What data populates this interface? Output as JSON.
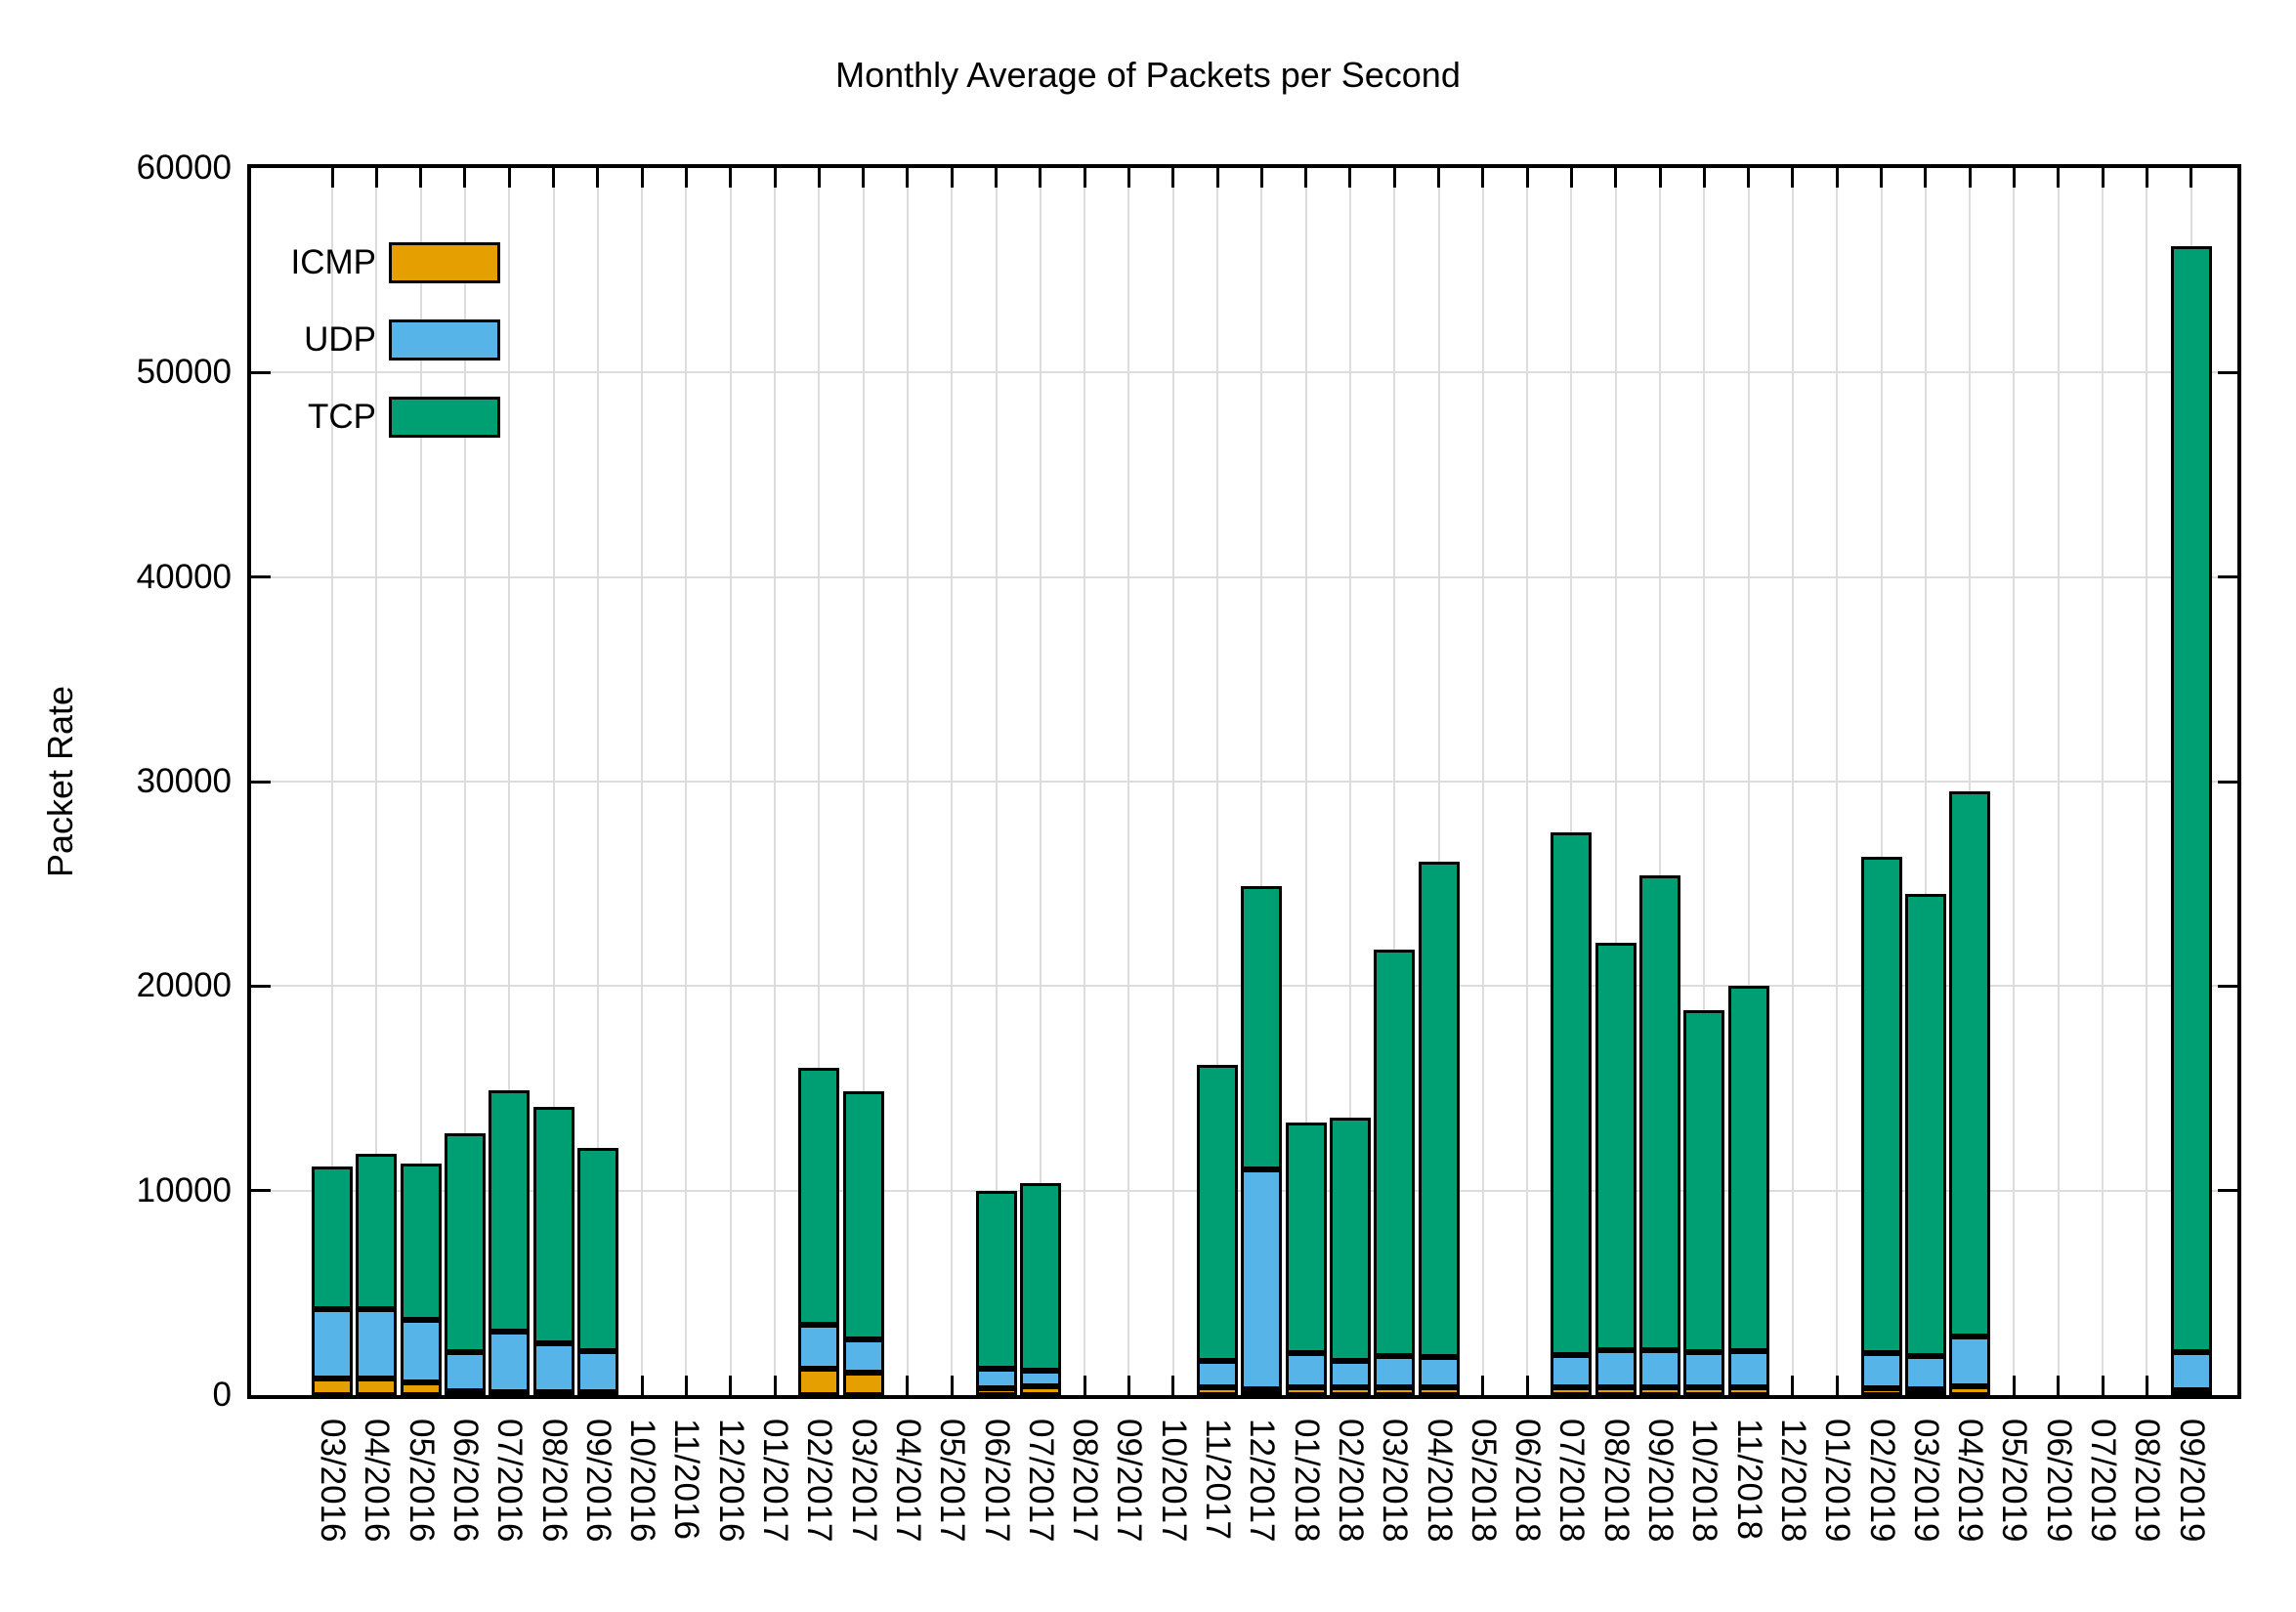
{
  "chart_data": {
    "type": "bar",
    "stacked": true,
    "title": "Monthly Average of Packets per Second",
    "xlabel": "",
    "ylabel": "Packet Rate",
    "ylim": [
      0,
      60000
    ],
    "yticks": [
      0,
      10000,
      20000,
      30000,
      40000,
      50000,
      60000
    ],
    "grid": true,
    "legend_position": "top-left-inside",
    "categories": [
      "03/2016",
      "04/2016",
      "05/2016",
      "06/2016",
      "07/2016",
      "08/2016",
      "09/2016",
      "10/2016",
      "11/2016",
      "12/2016",
      "01/2017",
      "02/2017",
      "03/2017",
      "04/2017",
      "05/2017",
      "06/2017",
      "07/2017",
      "08/2017",
      "09/2017",
      "10/2017",
      "11/2017",
      "12/2017",
      "01/2018",
      "02/2018",
      "03/2018",
      "04/2018",
      "05/2018",
      "06/2018",
      "07/2018",
      "08/2018",
      "09/2018",
      "10/2018",
      "11/2018",
      "12/2018",
      "01/2019",
      "02/2019",
      "03/2019",
      "04/2019",
      "05/2019",
      "06/2019",
      "07/2019",
      "08/2019",
      "09/2019"
    ],
    "series": [
      {
        "name": "ICMP",
        "color": "#E69F00",
        "values": [
          800,
          800,
          620,
          200,
          150,
          150,
          150,
          null,
          null,
          null,
          null,
          1300,
          1100,
          null,
          null,
          330,
          420,
          null,
          null,
          null,
          390,
          300,
          400,
          400,
          400,
          400,
          null,
          null,
          400,
          400,
          400,
          400,
          400,
          null,
          null,
          350,
          300,
          450,
          null,
          null,
          null,
          null,
          250
        ]
      },
      {
        "name": "UDP",
        "color": "#56B4E9",
        "values": [
          3400,
          3400,
          3080,
          1900,
          2950,
          2400,
          2000,
          null,
          null,
          null,
          null,
          2160,
          1630,
          null,
          null,
          960,
          760,
          null,
          null,
          null,
          1290,
          10750,
          1670,
          1260,
          1510,
          1460,
          null,
          null,
          1540,
          1780,
          1810,
          1700,
          1740,
          null,
          null,
          1710,
          1630,
          2410,
          null,
          null,
          null,
          null,
          1850
        ]
      },
      {
        "name": "TCP",
        "color": "#009E73",
        "values": [
          7000,
          7600,
          7600,
          10700,
          11800,
          11550,
          9950,
          null,
          null,
          null,
          null,
          12540,
          12120,
          null,
          null,
          8710,
          9170,
          null,
          null,
          null,
          14470,
          13850,
          11280,
          11890,
          19890,
          24240,
          null,
          null,
          25560,
          19920,
          23190,
          16700,
          17860,
          null,
          null,
          24240,
          22570,
          26640,
          null,
          null,
          null,
          null,
          54100
        ]
      }
    ]
  }
}
